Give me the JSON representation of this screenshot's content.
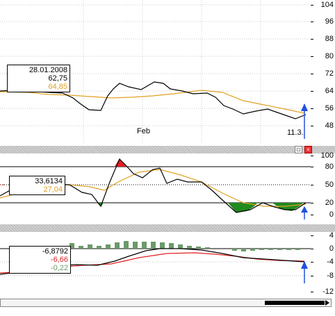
{
  "panels": {
    "price": {
      "axis_ticks": [
        "104",
        "96",
        "88",
        "80",
        "72",
        "64",
        "56",
        "48"
      ],
      "info": {
        "date": "28.01.2008",
        "value": "62,75",
        "avg": "64,85"
      },
      "month_label": "Feb",
      "cursor_label": "11.3."
    },
    "stoch": {
      "axis_ticks": [
        "100",
        "80",
        "50",
        "20",
        "0"
      ],
      "info": {
        "value": "33,6134",
        "avg": "27,04"
      }
    },
    "macd": {
      "axis_ticks": [
        "4",
        "0",
        "-4",
        "-8",
        "-12"
      ],
      "info": {
        "value": "-6,8792",
        "signal": "-6,66",
        "hist": "-0,22"
      }
    }
  },
  "colors": {
    "price_line": "#000000",
    "avg_line": "#e0a020",
    "signal_line": "#e02020",
    "hist_bar": "#6a9a6a",
    "oversold_fill": "#208a20",
    "overbought_fill": "#e02020",
    "cursor_arrow": "#2050e0"
  },
  "icons": {
    "maximize": "maximize-icon",
    "close": "close-icon"
  }
}
